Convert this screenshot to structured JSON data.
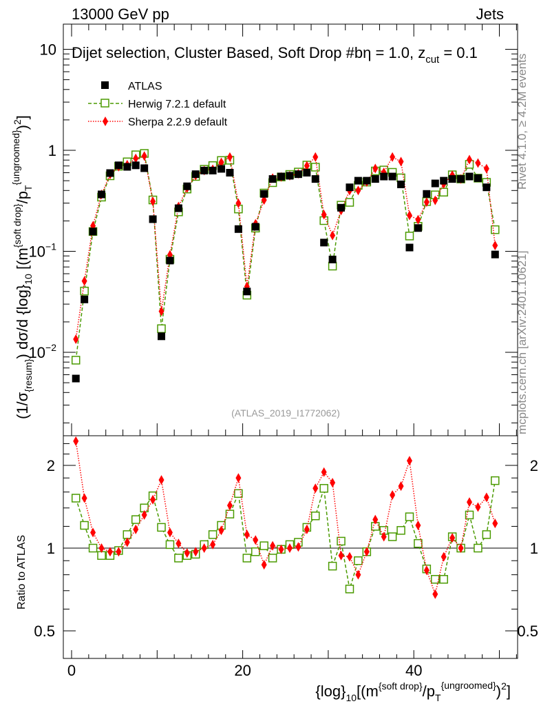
{
  "header": {
    "left": "13000 GeV pp",
    "right": "Jets"
  },
  "side_text": {
    "rivet": "Rivet 4.1.0, ≥ 4.2M events",
    "mcplots": "mcplots.cern.ch [arXiv:2401.10621]"
  },
  "watermark": "(ATLAS_2019_I1772062)",
  "chart_data": {
    "type": "scatter",
    "title": {
      "main": "Dijet selection, Cluster Based, Soft Drop #bη = 1.0, z",
      "sub": "cut",
      "tail": " = 0.1"
    },
    "ylabel": {
      "a": "(1/σ",
      "a_sub": "{resum}",
      "b": ") dσ/d {log}",
      "b_sub": "10",
      "c": " [(m",
      "c_sup": "{soft drop}",
      "d": "/p",
      "d_sub": "T",
      "d_sup": "{ungroomed}",
      "e": ")",
      "e_sup": "2",
      "f": "]"
    },
    "xlabel": {
      "a": "{log}",
      "a_sub": "10",
      "b": "[(m",
      "b_sup": "{soft drop}",
      "c": "/p",
      "c_sub": "T",
      "c_sup": "{ungroomed}",
      "d": ")",
      "d_sup": "2",
      "e": "]"
    },
    "ratio_ylabel": "Ratio to ATLAS",
    "xlim": [
      -0.5,
      52
    ],
    "ylim": [
      0.0012,
      18
    ],
    "ratio_ylim": [
      0.43,
      2.5
    ],
    "x_ticks": [
      "0",
      "20",
      "40"
    ],
    "y_ticks": [
      {
        "v": 10,
        "t": "10",
        "e": ""
      },
      {
        "v": 1,
        "t": "1",
        "e": ""
      },
      {
        "v": 0.1,
        "t": "10",
        "e": "−1"
      },
      {
        "v": 0.01,
        "t": "10",
        "e": "−2"
      }
    ],
    "ratio_ticks": [
      "2",
      "1",
      "0.5"
    ],
    "legend_position": "top-left",
    "x": [
      0.5,
      1.5,
      2.5,
      3.5,
      4.5,
      5.5,
      6.5,
      7.5,
      8.5,
      9.5,
      10.5,
      11.5,
      12.5,
      13.5,
      14.5,
      15.5,
      16.5,
      17.5,
      18.5,
      19.5,
      20.5,
      21.5,
      22.5,
      23.5,
      24.5,
      25.5,
      26.5,
      27.5,
      28.5,
      29.5,
      30.5,
      31.5,
      32.5,
      33.5,
      34.5,
      35.5,
      36.5,
      37.5,
      38.5,
      39.5,
      40.5,
      41.5,
      42.5,
      43.5,
      44.5,
      45.5,
      46.5,
      47.5,
      48.5,
      49.5
    ],
    "series": [
      {
        "name": "ATLAS",
        "color": "#000000",
        "marker": "filled-square",
        "values": [
          0.0055,
          0.0334,
          0.157,
          0.366,
          0.595,
          0.71,
          0.686,
          0.71,
          0.665,
          0.208,
          0.0144,
          0.081,
          0.267,
          0.44,
          0.58,
          0.63,
          0.63,
          0.655,
          0.6,
          0.166,
          0.04,
          0.175,
          0.37,
          0.52,
          0.55,
          0.56,
          0.58,
          0.6,
          0.52,
          0.122,
          0.083,
          0.27,
          0.43,
          0.5,
          0.5,
          0.52,
          0.55,
          0.55,
          0.46,
          0.109,
          0.17,
          0.37,
          0.47,
          0.5,
          0.52,
          0.52,
          0.55,
          0.53,
          0.43,
          0.093
        ]
      },
      {
        "name": "Herwig 7.2.1 default",
        "color": "#4a9a00",
        "marker": "open-square",
        "line": "dashed",
        "ratio": [
          1.52,
          1.21,
          1.0,
          0.94,
          0.94,
          0.98,
          1.12,
          1.27,
          1.4,
          1.55,
          1.19,
          1.03,
          0.92,
          0.94,
          0.95,
          1.03,
          1.12,
          1.21,
          1.33,
          1.58,
          0.92,
          0.97,
          1.02,
          0.92,
          0.99,
          1.03,
          1.05,
          1.19,
          1.31,
          1.65,
          0.86,
          1.06,
          0.71,
          0.9,
          0.97,
          1.2,
          1.16,
          1.1,
          1.16,
          1.3,
          1.04,
          0.84,
          0.77,
          0.77,
          1.1,
          1.0,
          1.32,
          1.0,
          1.12,
          1.76
        ]
      },
      {
        "name": "Sherpa 2.2.9 default",
        "color": "#ff0000",
        "marker": "diamond",
        "line": "dotted",
        "ratio": [
          2.45,
          1.52,
          1.14,
          1.0,
          0.97,
          0.97,
          1.05,
          1.17,
          1.32,
          1.5,
          1.77,
          1.14,
          1.04,
          0.96,
          0.97,
          1.0,
          1.03,
          1.16,
          1.43,
          1.8,
          1.12,
          1.07,
          0.87,
          1.02,
          0.99,
          1.0,
          1.01,
          1.17,
          1.65,
          1.89,
          1.73,
          0.94,
          0.93,
          0.8,
          0.97,
          1.27,
          1.1,
          1.56,
          1.68,
          2.08,
          1.21,
          0.83,
          0.68,
          0.93,
          1.09,
          1.0,
          1.47,
          1.41,
          1.53,
          1.23
        ]
      }
    ]
  }
}
